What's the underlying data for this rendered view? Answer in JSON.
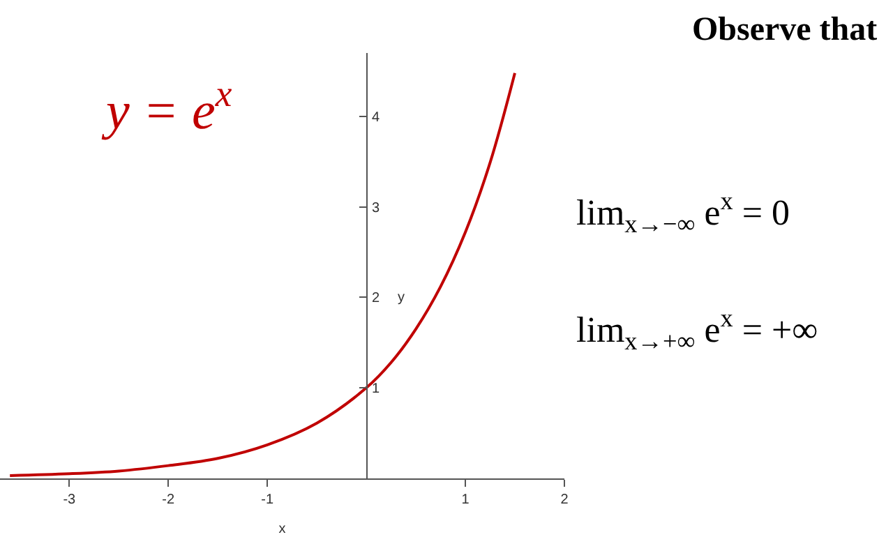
{
  "chart_data": {
    "type": "line",
    "title": "Observe that",
    "xlabel": "x",
    "ylabel": "y",
    "x": [
      -3.6,
      -3,
      -2.5,
      -2,
      -1.5,
      -1,
      -0.5,
      0,
      0.25,
      0.5,
      0.75,
      1,
      1.25,
      1.5
    ],
    "series": [
      {
        "name": "y = e$^{x}$",
        "color": "#c00000",
        "values": [
          0.03,
          0.05,
          0.08,
          0.14,
          0.22,
          0.37,
          0.61,
          1.0,
          1.28,
          1.65,
          2.12,
          2.72,
          3.49,
          4.48
        ]
      }
    ],
    "annotations": [
      "lim$_{x→−∞}$ e$^{x}$ = 0",
      "lim$_{x→+∞}$ e$^{x}$ = +∞"
    ],
    "xlim": [
      -3.7,
      2
    ],
    "ylim": [
      0,
      4.7
    ],
    "xticks": [
      -3,
      -2,
      -1,
      1,
      2
    ],
    "yticks": [
      1,
      2,
      3,
      4
    ],
    "marker": "none",
    "line_style": "solid"
  }
}
